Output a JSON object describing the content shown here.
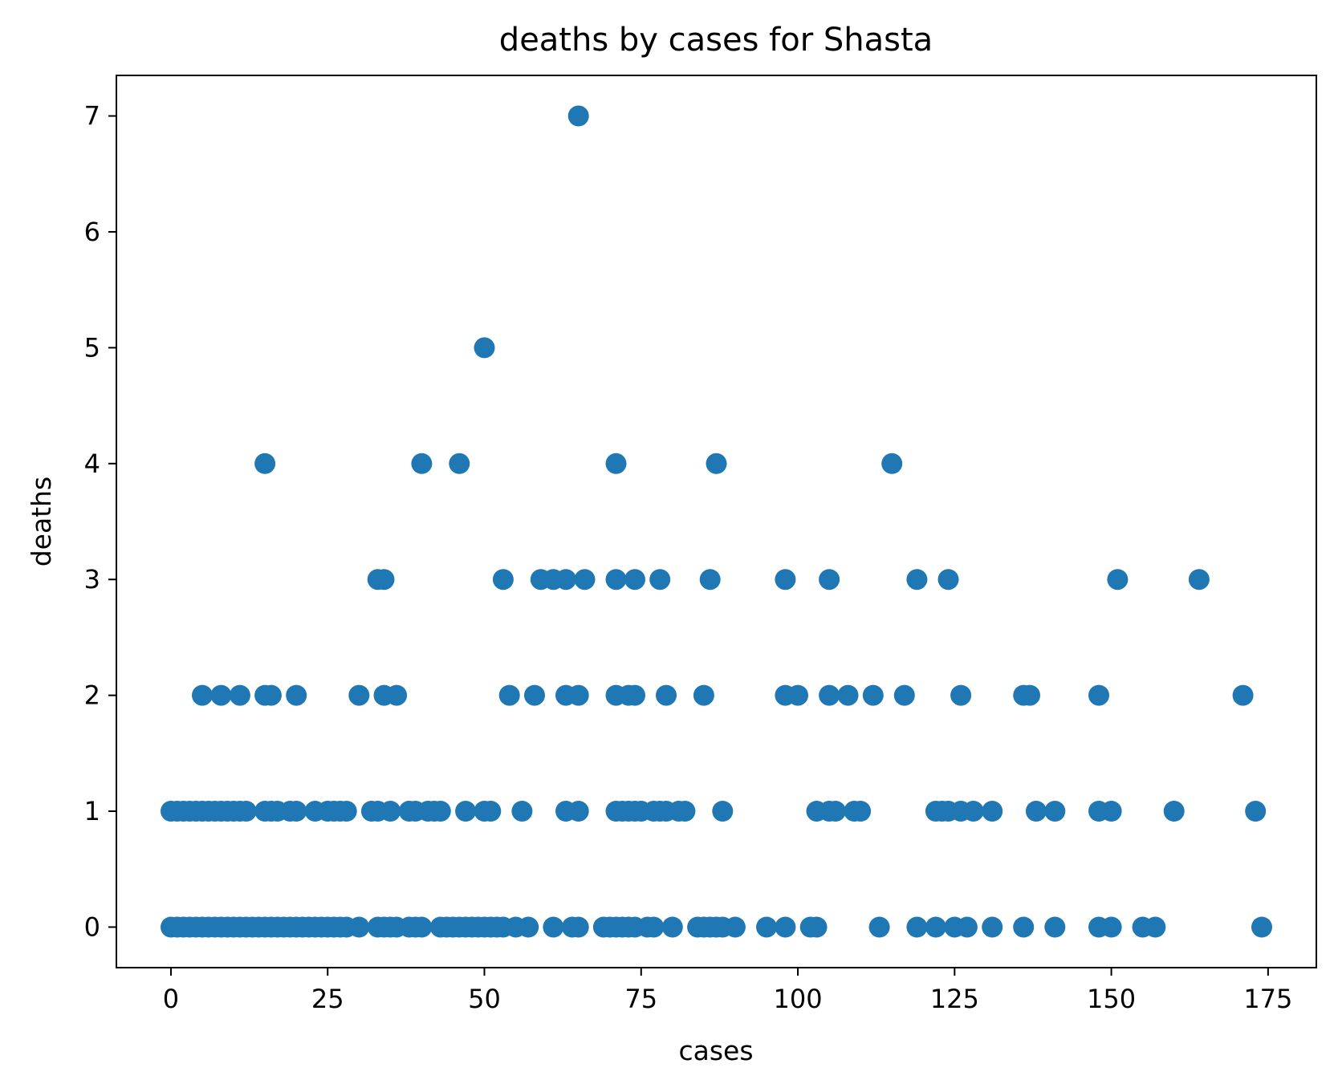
{
  "chart_data": {
    "type": "scatter",
    "title": "deaths by cases for Shasta",
    "xlabel": "cases",
    "ylabel": "deaths",
    "xlim": [
      -8.7,
      182.7
    ],
    "ylim": [
      -0.35,
      7.35
    ],
    "xticks": [
      0,
      25,
      50,
      75,
      100,
      125,
      150,
      175
    ],
    "yticks": [
      0,
      1,
      2,
      3,
      4,
      5,
      6,
      7
    ],
    "grid": false,
    "marker_color": "#1f77b4",
    "series": [
      {
        "x": [
          0,
          1,
          2,
          3,
          4,
          5,
          6,
          7,
          8,
          9,
          10,
          11,
          12,
          13,
          14,
          15,
          16,
          17,
          18,
          19,
          20,
          21,
          22,
          23,
          24,
          25,
          26,
          27,
          28,
          30,
          33,
          34,
          35,
          36,
          38,
          39,
          40,
          43,
          44,
          45,
          46,
          47,
          48,
          49,
          50,
          51,
          52,
          53,
          55,
          57,
          61,
          64,
          65,
          69,
          70,
          71,
          72,
          73,
          74,
          76,
          77,
          80,
          84,
          85,
          86,
          87,
          88,
          90,
          95,
          98,
          102,
          103,
          113,
          119,
          122,
          125,
          127,
          131,
          136,
          141,
          148,
          150,
          155,
          157,
          174,
          0,
          1,
          2,
          3,
          4,
          5,
          6,
          7,
          8,
          9,
          10,
          11,
          12,
          15,
          16,
          17,
          19,
          20,
          23,
          25,
          26,
          27,
          28,
          32,
          33,
          35,
          38,
          39,
          41,
          42,
          43,
          47,
          50,
          51,
          56,
          63,
          65,
          71,
          72,
          73,
          74,
          75,
          77,
          78,
          79,
          81,
          82,
          88,
          103,
          105,
          106,
          109,
          110,
          122,
          123,
          124,
          126,
          128,
          131,
          138,
          141,
          148,
          150,
          160,
          173,
          5,
          8,
          11,
          15,
          16,
          20,
          30,
          34,
          36,
          54,
          58,
          63,
          65,
          71,
          73,
          74,
          79,
          85,
          98,
          100,
          105,
          108,
          112,
          117,
          126,
          136,
          137,
          148,
          171,
          33,
          34,
          53,
          59,
          61,
          63,
          66,
          71,
          74,
          78,
          86,
          98,
          105,
          119,
          124,
          151,
          164,
          15,
          40,
          46,
          71,
          87,
          115,
          50,
          65
        ],
        "y": [
          0,
          0,
          0,
          0,
          0,
          0,
          0,
          0,
          0,
          0,
          0,
          0,
          0,
          0,
          0,
          0,
          0,
          0,
          0,
          0,
          0,
          0,
          0,
          0,
          0,
          0,
          0,
          0,
          0,
          0,
          0,
          0,
          0,
          0,
          0,
          0,
          0,
          0,
          0,
          0,
          0,
          0,
          0,
          0,
          0,
          0,
          0,
          0,
          0,
          0,
          0,
          0,
          0,
          0,
          0,
          0,
          0,
          0,
          0,
          0,
          0,
          0,
          0,
          0,
          0,
          0,
          0,
          0,
          0,
          0,
          0,
          0,
          0,
          0,
          0,
          0,
          0,
          0,
          0,
          0,
          0,
          0,
          0,
          0,
          0,
          1,
          1,
          1,
          1,
          1,
          1,
          1,
          1,
          1,
          1,
          1,
          1,
          1,
          1,
          1,
          1,
          1,
          1,
          1,
          1,
          1,
          1,
          1,
          1,
          1,
          1,
          1,
          1,
          1,
          1,
          1,
          1,
          1,
          1,
          1,
          1,
          1,
          1,
          1,
          1,
          1,
          1,
          1,
          1,
          1,
          1,
          1,
          1,
          1,
          1,
          1,
          1,
          1,
          1,
          1,
          1,
          1,
          1,
          1,
          1,
          1,
          1,
          1,
          1,
          1,
          2,
          2,
          2,
          2,
          2,
          2,
          2,
          2,
          2,
          2,
          2,
          2,
          2,
          2,
          2,
          2,
          2,
          2,
          2,
          2,
          2,
          2,
          2,
          2,
          2,
          2,
          2,
          2,
          2,
          3,
          3,
          3,
          3,
          3,
          3,
          3,
          3,
          3,
          3,
          3,
          3,
          3,
          3,
          3,
          3,
          3,
          4,
          4,
          4,
          4,
          4,
          4,
          5,
          7
        ]
      }
    ]
  }
}
